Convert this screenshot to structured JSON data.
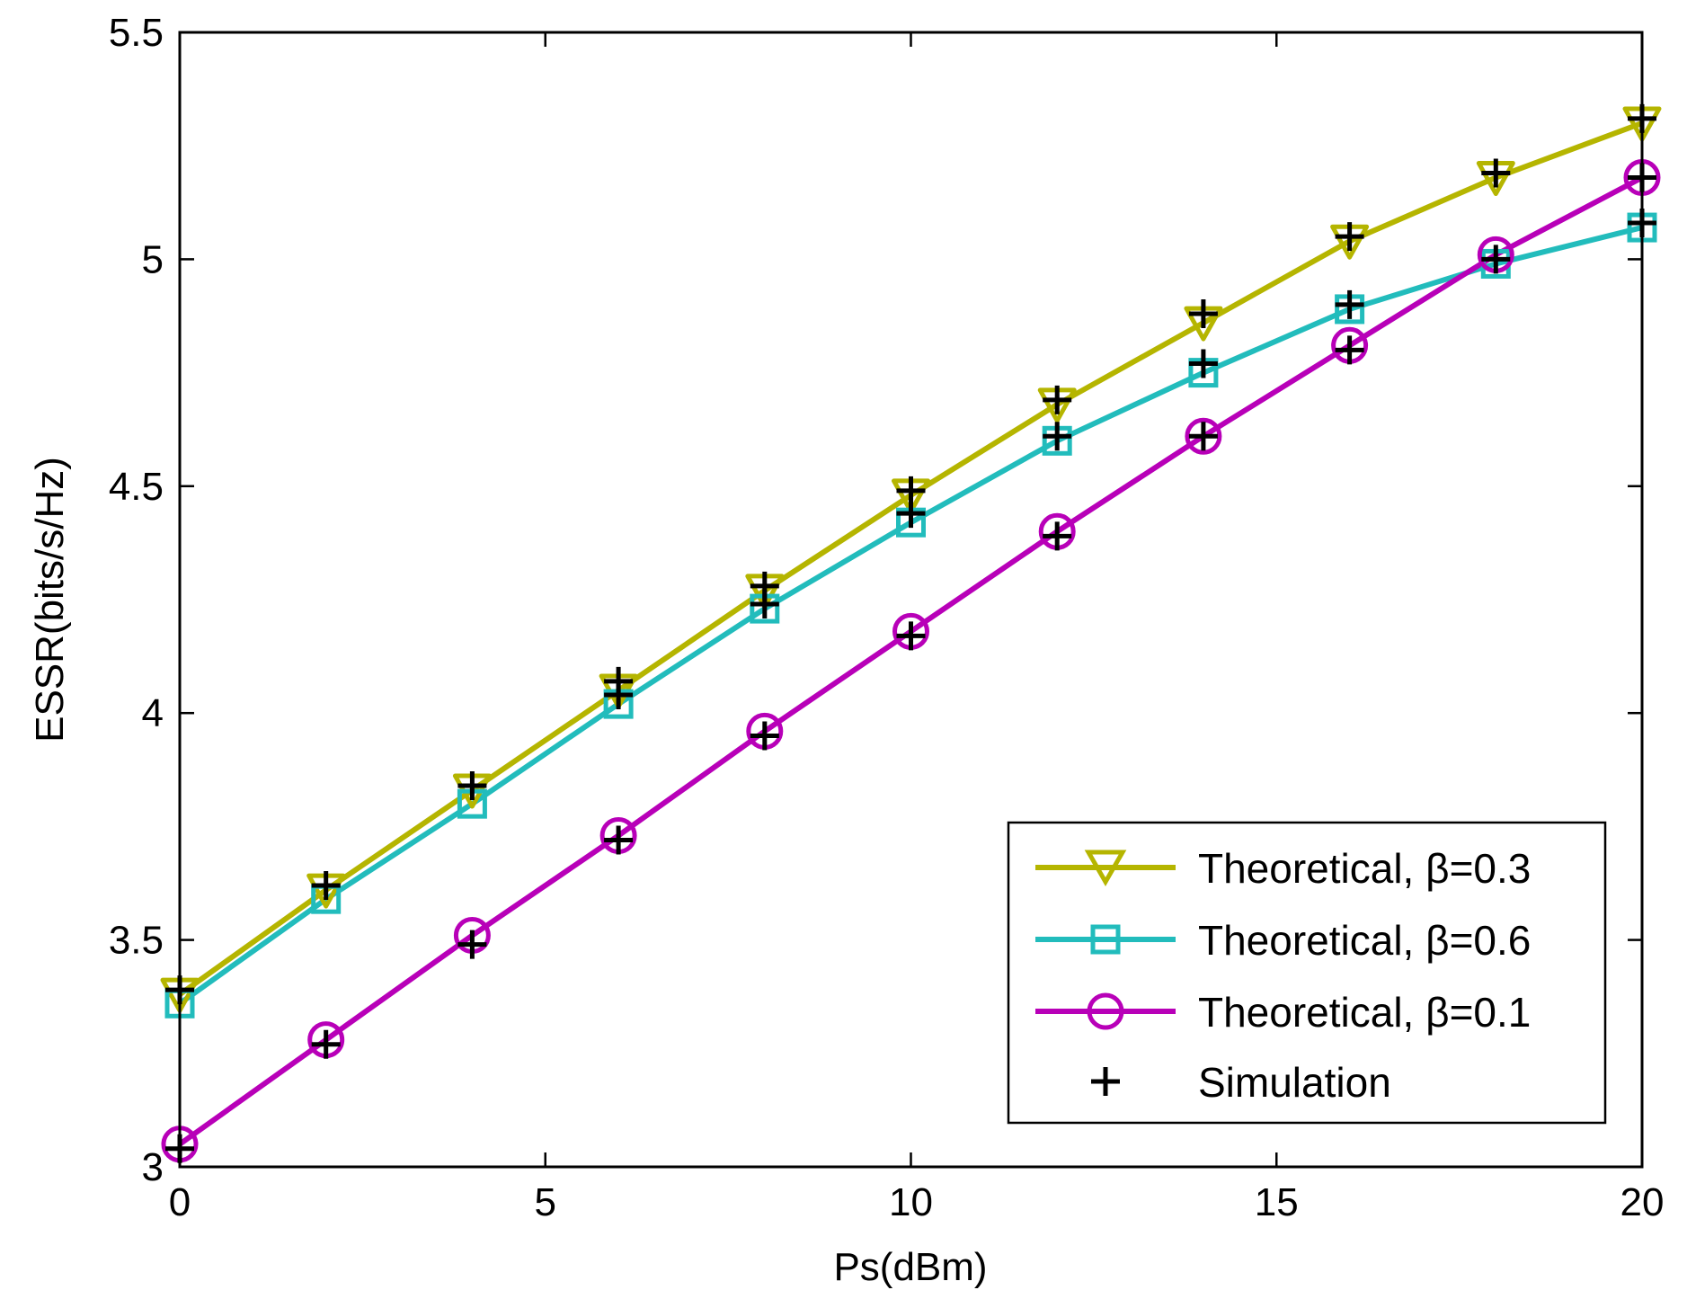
{
  "chart_data": {
    "type": "line",
    "title": "",
    "xlabel": "Ps(dBm)",
    "ylabel": "ESSR(bits/s/Hz)",
    "xlim": [
      0,
      20
    ],
    "ylim": [
      3,
      5.5
    ],
    "xticks": [
      0,
      5,
      10,
      15,
      20
    ],
    "yticks": [
      3,
      3.5,
      4,
      4.5,
      5,
      5.5
    ],
    "xtick_labels": [
      "0",
      "5",
      "10",
      "15",
      "20"
    ],
    "ytick_labels": [
      "3",
      "3.5",
      "4",
      "4.5",
      "5",
      "5.5"
    ],
    "grid": false,
    "legend_position": "bottom-right",
    "x": [
      0,
      2,
      4,
      6,
      8,
      10,
      12,
      14,
      16,
      18,
      20
    ],
    "series": [
      {
        "name": "Theoretical, β=0.3",
        "color": "#b5b500",
        "marker": "triangle-down",
        "values": [
          3.38,
          3.61,
          3.83,
          4.05,
          4.27,
          4.48,
          4.68,
          4.86,
          5.04,
          5.18,
          5.3
        ]
      },
      {
        "name": "Theoretical, β=0.6",
        "color": "#22bcbc",
        "marker": "square",
        "values": [
          3.36,
          3.59,
          3.8,
          4.02,
          4.23,
          4.42,
          4.6,
          4.75,
          4.89,
          4.99,
          5.07
        ]
      },
      {
        "name": "Theoretical, β=0.1",
        "color": "#b800b8",
        "marker": "circle",
        "values": [
          3.05,
          3.28,
          3.51,
          3.73,
          3.96,
          4.18,
          4.4,
          4.61,
          4.81,
          5.01,
          5.18
        ]
      },
      {
        "name": "Simulation",
        "color": "#000000",
        "marker": "plus",
        "points": [
          {
            "x": 0,
            "y": 3.39
          },
          {
            "x": 0,
            "y": 3.04
          },
          {
            "x": 2,
            "y": 3.62
          },
          {
            "x": 2,
            "y": 3.27
          },
          {
            "x": 4,
            "y": 3.84
          },
          {
            "x": 4,
            "y": 3.49
          },
          {
            "x": 6,
            "y": 4.07
          },
          {
            "x": 6,
            "y": 4.04
          },
          {
            "x": 6,
            "y": 3.72
          },
          {
            "x": 8,
            "y": 4.28
          },
          {
            "x": 8,
            "y": 4.24
          },
          {
            "x": 8,
            "y": 3.95
          },
          {
            "x": 10,
            "y": 4.49
          },
          {
            "x": 10,
            "y": 4.44
          },
          {
            "x": 10,
            "y": 4.17
          },
          {
            "x": 12,
            "y": 4.69
          },
          {
            "x": 12,
            "y": 4.61
          },
          {
            "x": 12,
            "y": 4.39
          },
          {
            "x": 14,
            "y": 4.88
          },
          {
            "x": 14,
            "y": 4.77
          },
          {
            "x": 14,
            "y": 4.61
          },
          {
            "x": 16,
            "y": 5.05
          },
          {
            "x": 16,
            "y": 4.9
          },
          {
            "x": 16,
            "y": 4.8
          },
          {
            "x": 18,
            "y": 5.19
          },
          {
            "x": 18,
            "y": 5.0
          },
          {
            "x": 20,
            "y": 5.31
          },
          {
            "x": 20,
            "y": 5.18
          },
          {
            "x": 20,
            "y": 5.08
          }
        ]
      }
    ]
  }
}
